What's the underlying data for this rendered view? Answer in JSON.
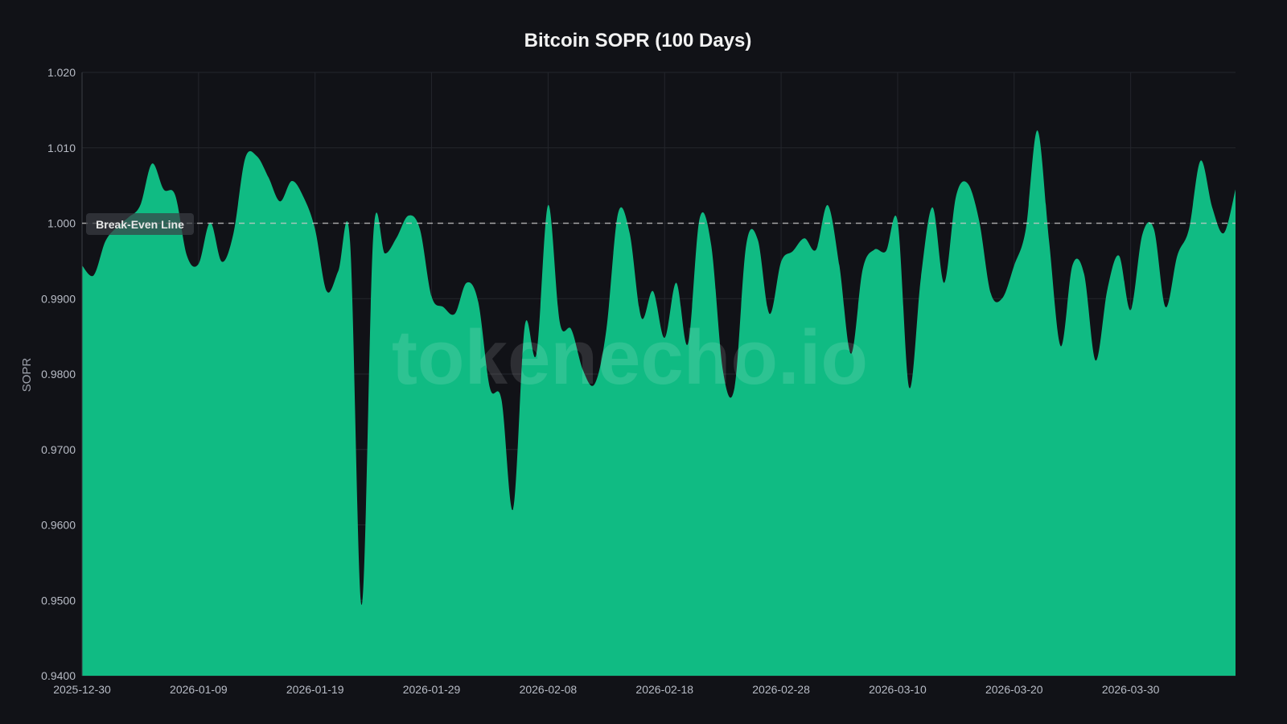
{
  "chart_data": {
    "type": "area",
    "title": "Bitcoin SOPR (100 Days)",
    "xlabel": "",
    "ylabel": "SOPR",
    "ylim": [
      0.94,
      1.02
    ],
    "grid": true,
    "fill_color": "#10bb83",
    "background_color": "#111217",
    "y_ticks": [
      "1.020",
      "1.010",
      "1.000",
      "0.9900",
      "0.9800",
      "0.9700",
      "0.9600",
      "0.9500",
      "0.9400"
    ],
    "y_tick_values": [
      1.02,
      1.01,
      1.0,
      0.99,
      0.98,
      0.97,
      0.96,
      0.95,
      0.94
    ],
    "x_ticks": [
      "2025-12-30",
      "2026-01-09",
      "2026-01-19",
      "2026-01-29",
      "2026-02-08",
      "2026-02-18",
      "2026-02-28",
      "2026-03-10",
      "2026-03-20",
      "2026-03-30"
    ],
    "reference_line": {
      "value": 1.0,
      "label": "Break-Even Line",
      "style": "dashed"
    },
    "watermark": "tokenecho.io",
    "x": [
      "2025-12-30",
      "2025-12-31",
      "2026-01-01",
      "2026-01-02",
      "2026-01-03",
      "2026-01-04",
      "2026-01-05",
      "2026-01-06",
      "2026-01-07",
      "2026-01-08",
      "2026-01-09",
      "2026-01-10",
      "2026-01-11",
      "2026-01-12",
      "2026-01-13",
      "2026-01-14",
      "2026-01-15",
      "2026-01-16",
      "2026-01-17",
      "2026-01-18",
      "2026-01-19",
      "2026-01-20",
      "2026-01-21",
      "2026-01-22",
      "2026-01-23",
      "2026-01-24",
      "2026-01-25",
      "2026-01-26",
      "2026-01-27",
      "2026-01-28",
      "2026-01-29",
      "2026-01-30",
      "2026-01-31",
      "2026-02-01",
      "2026-02-02",
      "2026-02-03",
      "2026-02-04",
      "2026-02-05",
      "2026-02-06",
      "2026-02-07",
      "2026-02-08",
      "2026-02-09",
      "2026-02-10",
      "2026-02-11",
      "2026-02-12",
      "2026-02-13",
      "2026-02-14",
      "2026-02-15",
      "2026-02-16",
      "2026-02-17",
      "2026-02-18",
      "2026-02-19",
      "2026-02-20",
      "2026-02-21",
      "2026-02-22",
      "2026-02-23",
      "2026-02-24",
      "2026-02-25",
      "2026-02-26",
      "2026-02-27",
      "2026-02-28",
      "2026-03-01",
      "2026-03-02",
      "2026-03-03",
      "2026-03-04",
      "2026-03-05",
      "2026-03-06",
      "2026-03-07",
      "2026-03-08",
      "2026-03-09",
      "2026-03-10",
      "2026-03-11",
      "2026-03-12",
      "2026-03-13",
      "2026-03-14",
      "2026-03-15",
      "2026-03-16",
      "2026-03-17",
      "2026-03-18",
      "2026-03-19",
      "2026-03-20",
      "2026-03-21",
      "2026-03-22",
      "2026-03-23",
      "2026-03-24",
      "2026-03-25",
      "2026-03-26",
      "2026-03-27",
      "2026-03-28",
      "2026-03-29",
      "2026-03-30",
      "2026-03-31",
      "2026-04-01",
      "2026-04-02",
      "2026-04-03",
      "2026-04-04",
      "2026-04-05",
      "2026-04-06",
      "2026-04-07",
      "2026-04-08"
    ],
    "values": [
      0.9944,
      0.9931,
      0.9976,
      0.9995,
      1.0008,
      1.0024,
      1.0079,
      1.0045,
      1.0037,
      0.9957,
      0.9946,
      1.0001,
      0.9949,
      0.9987,
      1.0086,
      1.0089,
      1.0061,
      1.0029,
      1.0056,
      1.0035,
      0.9992,
      0.991,
      0.9937,
      0.9976,
      0.9494,
      0.9985,
      0.996,
      0.9981,
      1.001,
      0.9992,
      0.9903,
      0.9889,
      0.988,
      0.9921,
      0.9896,
      0.9782,
      0.9766,
      0.9621,
      0.9864,
      0.9827,
      1.0024,
      0.9869,
      0.9859,
      0.9805,
      0.9787,
      0.9859,
      1.0013,
      0.9987,
      0.9875,
      0.991,
      0.9848,
      0.9921,
      0.984,
      1.0006,
      0.9971,
      0.9805,
      0.9782,
      0.9971,
      0.9978,
      0.988,
      0.9949,
      0.9963,
      0.998,
      0.9965,
      1.0024,
      0.9944,
      0.9827,
      0.9939,
      0.9965,
      0.9963,
      1.0002,
      0.9782,
      0.9928,
      1.0021,
      0.9921,
      1.0035,
      1.0053,
      1.0003,
      0.9907,
      0.9901,
      0.9944,
      0.9992,
      1.0123,
      0.9976,
      0.9837,
      0.9944,
      0.9933,
      0.9818,
      0.9912,
      0.9957,
      0.9885,
      0.9985,
      0.9992,
      0.9889,
      0.9957,
      0.9992,
      1.0083,
      1.0021,
      0.9987,
      1.0045
    ]
  }
}
